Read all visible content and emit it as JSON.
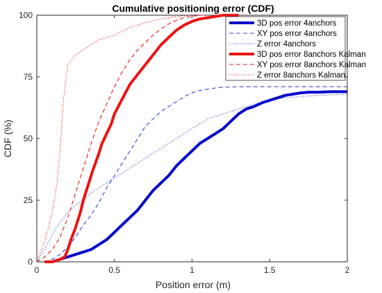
{
  "chart_data": {
    "type": "line",
    "title": "Cumulative positioning error (CDF)",
    "xlabel": "Position error (m)",
    "ylabel": "CDF (%)",
    "xlim": [
      0,
      2
    ],
    "ylim": [
      0,
      100
    ],
    "xticks": [
      0,
      0.5,
      1,
      1.5,
      2
    ],
    "xtick_labels": [
      "0",
      "0.5",
      "1",
      "1.5",
      "2"
    ],
    "yticks": [
      0,
      25,
      50,
      75,
      100
    ],
    "ytick_labels": [
      "0",
      "25",
      "50",
      "75",
      "100"
    ],
    "grid": false,
    "legend_position": "top-right",
    "series": [
      {
        "name": "3D pos error 4anchors",
        "color": "#0000cc",
        "style": "solid-thick",
        "x": [
          0.05,
          0.1,
          0.15,
          0.2,
          0.25,
          0.3,
          0.35,
          0.4,
          0.45,
          0.5,
          0.55,
          0.6,
          0.65,
          0.7,
          0.75,
          0.8,
          0.85,
          0.9,
          0.95,
          1.0,
          1.05,
          1.1,
          1.15,
          1.2,
          1.25,
          1.3,
          1.35,
          1.4,
          1.45,
          1.5,
          1.55,
          1.6,
          1.65,
          1.7,
          1.75,
          1.8,
          1.9,
          2.0
        ],
        "y": [
          0,
          0,
          1,
          2,
          3,
          4,
          5,
          7,
          9,
          12,
          15,
          18,
          21,
          25,
          29,
          32,
          35,
          39,
          42,
          45,
          48,
          50,
          52,
          54,
          57,
          60,
          62,
          63,
          64.5,
          65.5,
          66.5,
          67.5,
          68,
          68.5,
          68.8,
          68.8,
          69,
          69
        ]
      },
      {
        "name": "XY pos error 4anchors",
        "color": "#3344dd",
        "style": "dashed",
        "x": [
          0.05,
          0.1,
          0.15,
          0.2,
          0.25,
          0.3,
          0.35,
          0.4,
          0.45,
          0.5,
          0.55,
          0.6,
          0.65,
          0.7,
          0.75,
          0.8,
          0.85,
          0.9,
          0.95,
          1.0,
          1.05,
          1.1,
          1.15,
          1.2,
          1.3,
          1.4,
          1.5,
          1.6,
          1.7,
          2.0
        ],
        "y": [
          0,
          1,
          3,
          6,
          10,
          15,
          19,
          24,
          30,
          35,
          40,
          45,
          50,
          55,
          58,
          61,
          63,
          65,
          67,
          68.5,
          69.5,
          70,
          70.5,
          70.8,
          71,
          71,
          71,
          71,
          71,
          71
        ]
      },
      {
        "name": "Z error 4anchors",
        "color": "#3344dd",
        "style": "dotted",
        "x": [
          0,
          0.05,
          0.1,
          0.15,
          0.2,
          0.25,
          0.3,
          0.35,
          0.4,
          0.45,
          0.5,
          0.55,
          0.6,
          0.65,
          0.7,
          0.75,
          0.8,
          0.85,
          0.9,
          0.95,
          1.0,
          1.05,
          1.1,
          1.2,
          1.3,
          1.4,
          1.5,
          1.6,
          1.8,
          2.0
        ],
        "y": [
          0,
          5,
          11,
          16,
          20,
          23,
          25,
          28,
          30,
          32,
          34,
          36,
          38,
          40,
          42,
          44,
          46,
          48,
          50,
          52,
          54,
          56,
          58,
          60,
          62,
          64,
          65.5,
          66.5,
          67.5,
          68
        ]
      },
      {
        "name": "3D pos error 8anchors Kalman",
        "color": "#ee1111",
        "style": "solid-thick",
        "x": [
          0.05,
          0.1,
          0.15,
          0.18,
          0.2,
          0.22,
          0.25,
          0.28,
          0.3,
          0.33,
          0.36,
          0.4,
          0.42,
          0.45,
          0.48,
          0.5,
          0.55,
          0.6,
          0.65,
          0.7,
          0.75,
          0.8,
          0.85,
          0.9,
          0.95,
          1.0,
          1.05,
          1.1,
          1.15,
          1.2,
          1.25,
          1.3
        ],
        "y": [
          0,
          0,
          1,
          2,
          5,
          9,
          14,
          20,
          25,
          31,
          37,
          44,
          48,
          52,
          56,
          60,
          66,
          72,
          76,
          80,
          84,
          88,
          91,
          94,
          96,
          97.5,
          98.5,
          99,
          99.5,
          100,
          100,
          100
        ]
      },
      {
        "name": "XY pos error 8anchors Kalman",
        "color": "#ee1111",
        "style": "dashed",
        "x": [
          0,
          0.05,
          0.1,
          0.15,
          0.2,
          0.25,
          0.3,
          0.35,
          0.4,
          0.45,
          0.5,
          0.55,
          0.6,
          0.65,
          0.7,
          0.75,
          0.8,
          0.85,
          0.9,
          0.95,
          1.0,
          1.05,
          1.1
        ],
        "y": [
          0,
          2,
          5,
          10,
          18,
          28,
          38,
          48,
          57,
          64,
          71,
          77,
          82,
          86,
          89,
          92,
          94.5,
          96.5,
          98,
          99,
          99.5,
          100,
          100
        ]
      },
      {
        "name": "Z error 8anchors Kalman",
        "color": "#ee1111",
        "style": "dotted",
        "x": [
          0,
          0.05,
          0.1,
          0.13,
          0.15,
          0.17,
          0.2,
          0.25,
          0.3,
          0.35,
          0.4,
          0.5,
          0.6,
          0.7,
          0.8,
          0.9,
          1.0
        ],
        "y": [
          0,
          8,
          20,
          32,
          45,
          65,
          80,
          84,
          86,
          88,
          90,
          92,
          95,
          97,
          98.5,
          99.5,
          100
        ]
      }
    ]
  }
}
